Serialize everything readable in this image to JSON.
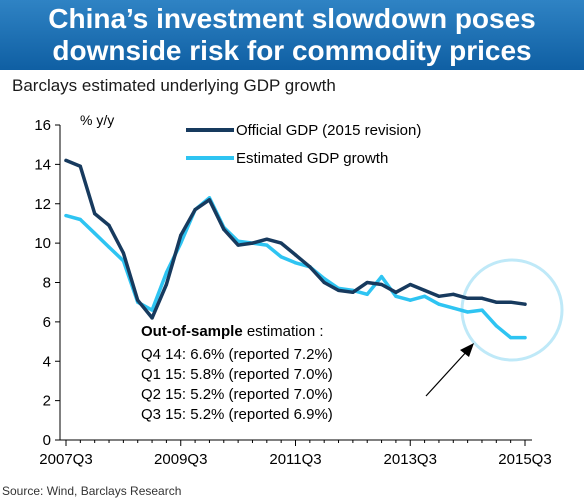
{
  "header": {
    "title_line1": "China’s investment slowdown poses",
    "title_line2": "downside risk for commodity prices"
  },
  "subtitle": "Barclays estimated underlying GDP growth",
  "source": "Source: Wind, Barclays Research",
  "colors": {
    "banner": "#1c6fb3",
    "official": "#173a5e",
    "estimated": "#2ec4f2",
    "highlight_circle": "#bfe9f8"
  },
  "annotation": {
    "heading_bold": "Out-of-sample",
    "heading_rest": " estimation :",
    "lines": [
      "Q4 14: 6.6% (reported 7.2%)",
      "Q1 15: 5.8% (reported 7.0%)",
      "Q2 15: 5.2% (reported 7.0%)",
      "Q3 15: 5.2% (reported 6.9%)"
    ]
  },
  "chart_data": {
    "type": "line",
    "ylabel": "% y/y",
    "ylim": [
      0,
      16
    ],
    "yticks": [
      0,
      2,
      4,
      6,
      8,
      10,
      12,
      14,
      16
    ],
    "xtick_labels": [
      "2007Q3",
      "2009Q3",
      "2011Q3",
      "2013Q3",
      "2015Q3"
    ],
    "x": [
      "2007Q3",
      "2007Q4",
      "2008Q1",
      "2008Q2",
      "2008Q3",
      "2008Q4",
      "2009Q1",
      "2009Q2",
      "2009Q3",
      "2009Q4",
      "2010Q1",
      "2010Q2",
      "2010Q3",
      "2010Q4",
      "2011Q1",
      "2011Q2",
      "2011Q3",
      "2011Q4",
      "2012Q1",
      "2012Q2",
      "2012Q3",
      "2012Q4",
      "2013Q1",
      "2013Q2",
      "2013Q3",
      "2013Q4",
      "2014Q1",
      "2014Q2",
      "2014Q3",
      "2014Q4",
      "2015Q1",
      "2015Q2",
      "2015Q3"
    ],
    "grid": false,
    "legend": "top",
    "series": [
      {
        "name": "Official GDP (2015 revision)",
        "values": [
          14.2,
          13.9,
          11.5,
          10.9,
          9.5,
          7.1,
          6.2,
          7.9,
          10.4,
          11.7,
          12.2,
          10.7,
          9.9,
          10.0,
          10.2,
          10.0,
          9.4,
          8.8,
          8.0,
          7.6,
          7.5,
          8.0,
          7.9,
          7.5,
          7.9,
          7.6,
          7.3,
          7.4,
          7.2,
          7.2,
          7.0,
          7.0,
          6.9
        ]
      },
      {
        "name": "Estimated GDP growth",
        "values": [
          11.4,
          11.2,
          10.5,
          9.8,
          9.1,
          7.0,
          6.6,
          8.5,
          10.0,
          11.7,
          12.3,
          10.8,
          10.1,
          10.0,
          9.9,
          9.3,
          9.0,
          8.8,
          8.2,
          7.7,
          7.6,
          7.4,
          8.3,
          7.3,
          7.1,
          7.3,
          6.9,
          6.7,
          6.5,
          6.6,
          5.8,
          5.2,
          5.2
        ]
      }
    ]
  }
}
